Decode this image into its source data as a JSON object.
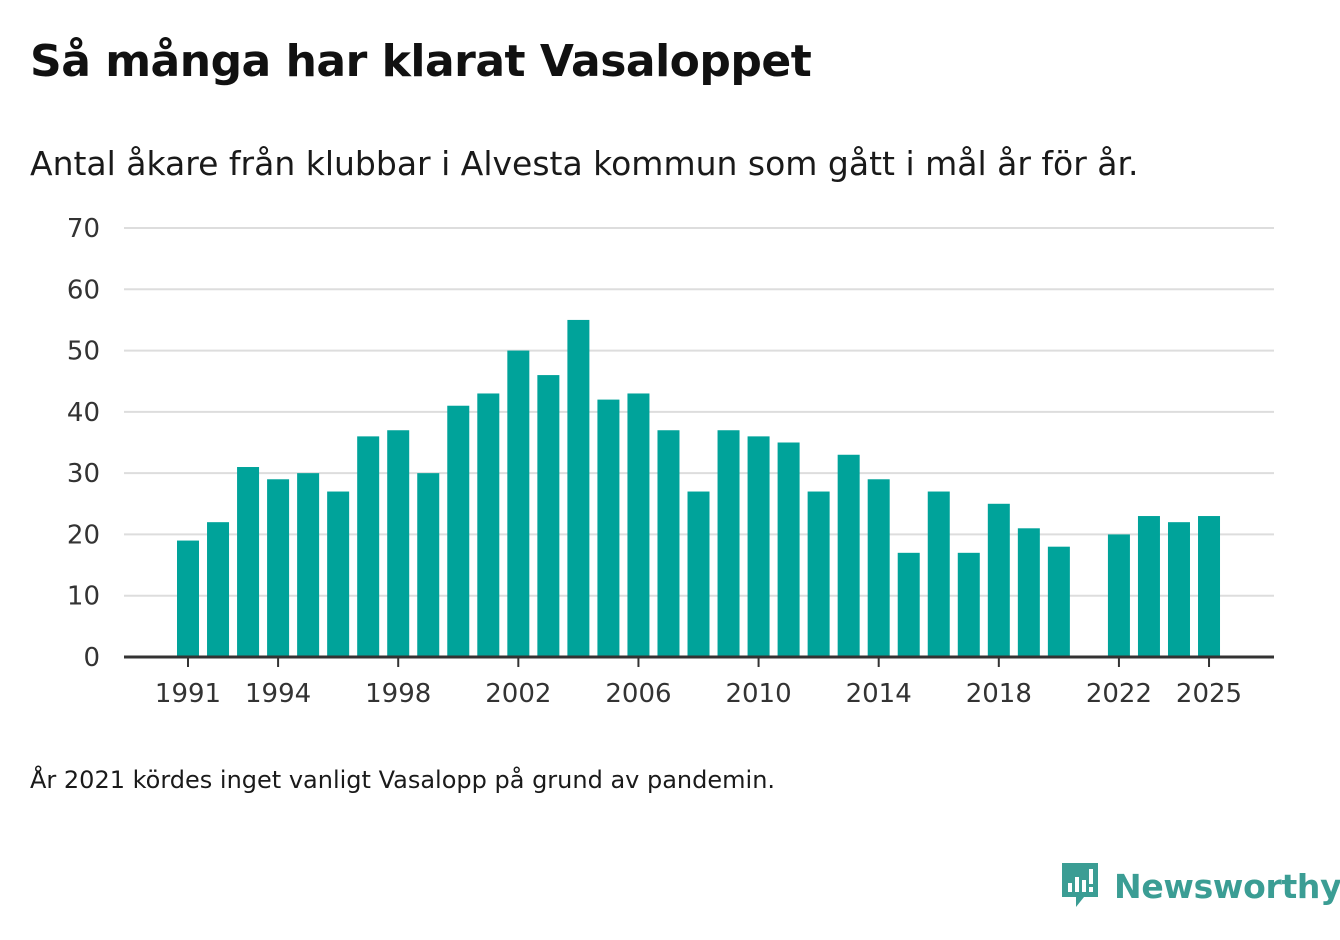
{
  "header": {
    "title": "Så många har klarat Vasaloppet",
    "subtitle": "Antal åkare från klubbar i Alvesta kommun som gått i mål år för år."
  },
  "footnote": "År 2021 kördes inget vanligt Vasalopp på grund av pandemin.",
  "brand": {
    "name": "Newsworthy",
    "icon": "newsworthy-logo-icon",
    "color": "#3b9d94"
  },
  "colors": {
    "bar": "#00a39a",
    "grid": "#dddddd",
    "axis": "#333333"
  },
  "chart_data": {
    "type": "bar",
    "title": "Så många har klarat Vasaloppet",
    "xlabel": "",
    "ylabel": "",
    "ylim": [
      0,
      70
    ],
    "yticks": [
      0,
      10,
      20,
      30,
      40,
      50,
      60,
      70
    ],
    "grid": true,
    "legend": "none",
    "x_tick_labels": [
      "1991",
      "1994",
      "1998",
      "2002",
      "2006",
      "2010",
      "2014",
      "2018",
      "2022",
      "2025"
    ],
    "categories": [
      1991,
      1992,
      1993,
      1994,
      1995,
      1996,
      1997,
      1998,
      1999,
      2000,
      2001,
      2002,
      2003,
      2004,
      2005,
      2006,
      2007,
      2008,
      2009,
      2010,
      2011,
      2012,
      2013,
      2014,
      2015,
      2016,
      2017,
      2018,
      2019,
      2020,
      2021,
      2022,
      2023,
      2024,
      2025
    ],
    "values": [
      19,
      22,
      31,
      29,
      30,
      27,
      36,
      37,
      30,
      41,
      43,
      50,
      46,
      55,
      42,
      43,
      37,
      27,
      37,
      36,
      35,
      27,
      33,
      29,
      17,
      27,
      17,
      25,
      21,
      18,
      null,
      20,
      23,
      22,
      23
    ]
  }
}
